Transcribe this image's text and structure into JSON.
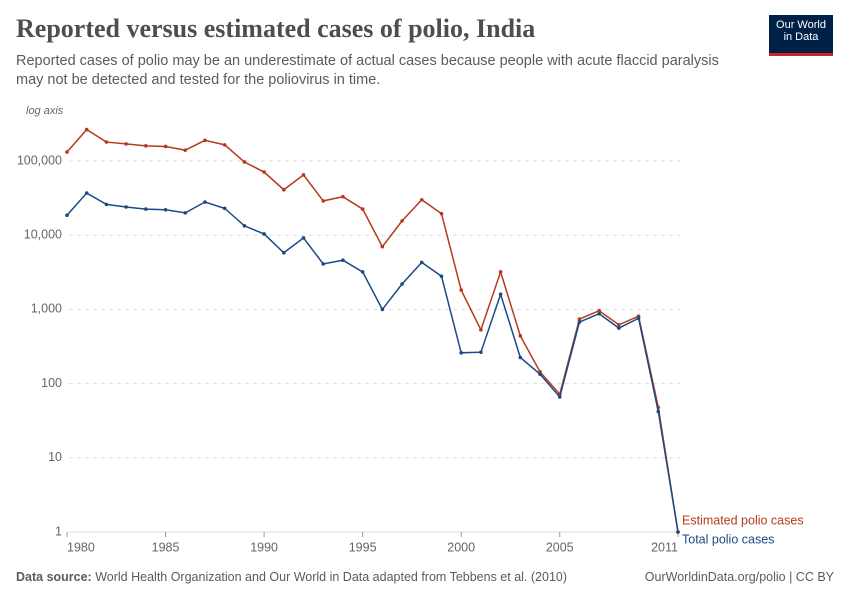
{
  "chart_data": {
    "type": "line",
    "title": "Reported versus estimated cases of polio, India",
    "subtitle": "Reported cases of polio may be an underestimate of actual cases because people with acute flaccid paralysis may not be detected and tested for the poliovirus in time.",
    "axis_note": "log axis",
    "log_scale": true,
    "grid": true,
    "x": [
      1980,
      1981,
      1982,
      1983,
      1984,
      1985,
      1986,
      1987,
      1988,
      1989,
      1990,
      1991,
      1992,
      1993,
      1994,
      1995,
      1996,
      1997,
      1998,
      1999,
      2000,
      2001,
      2002,
      2003,
      2004,
      2005,
      2006,
      2007,
      2008,
      2009,
      2010,
      2011
    ],
    "series": [
      {
        "name": "Estimated polio cases",
        "color": "#b5391d",
        "values": [
          132000,
          265000,
          180000,
          170000,
          160000,
          157000,
          140000,
          190000,
          165000,
          97000,
          71000,
          41000,
          65000,
          29000,
          33000,
          22500,
          7000,
          15600,
          30000,
          19500,
          1820,
          530,
          3200,
          440,
          144,
          72,
          740,
          960,
          620,
          810,
          48,
          1
        ]
      },
      {
        "name": "Total polio cases",
        "color": "#1a4a85",
        "values": [
          18600,
          37000,
          26000,
          24000,
          22500,
          22000,
          20000,
          28000,
          23000,
          13400,
          10400,
          5800,
          9200,
          4100,
          4600,
          3200,
          1000,
          2200,
          4300,
          2800,
          260,
          265,
          1600,
          225,
          134,
          66,
          676,
          874,
          560,
          760,
          42,
          1
        ]
      }
    ],
    "xlim": [
      1980,
      2011
    ],
    "xticks": [
      1980,
      1985,
      1990,
      1995,
      2000,
      2005,
      2011
    ],
    "ylim": [
      1,
      300000
    ],
    "yticks": [
      1,
      10,
      100,
      {
        "value": 1000,
        "label": "1,000"
      },
      {
        "value": 10000,
        "label": "10,000"
      },
      {
        "value": 100000,
        "label": "100,000"
      }
    ],
    "logo": [
      "Our World",
      "in Data"
    ],
    "source_label": "Data source:",
    "source": "World Health Organization and Our World in Data adapted from Tebbens et al. (2010)",
    "url_license": "OurWorldinData.org/polio | CC BY"
  }
}
